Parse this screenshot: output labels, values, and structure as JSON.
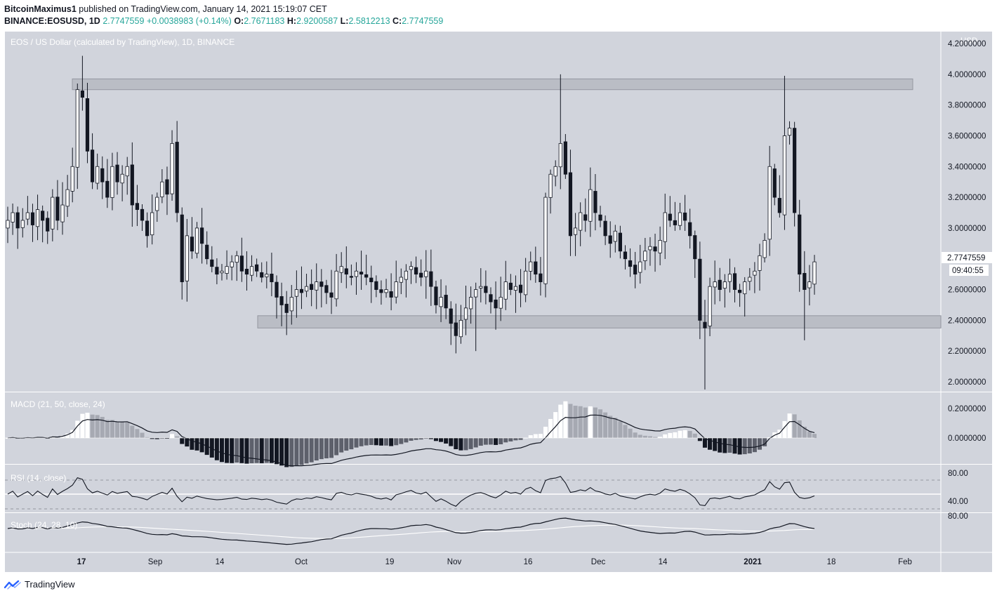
{
  "header": {
    "author": "BitcoinMaximus1",
    "published_text": "published on TradingView.com, January 14, 2021 15:19:07 CET",
    "symbol_line": "BINANCE:EOSUSD, 1D",
    "price": "2.7747559",
    "change": "+0.0038983 (+0.14%)",
    "o_label": "O:",
    "o": "2.7671183",
    "h_label": "H:",
    "h": "2.9200587",
    "l_label": "L:",
    "l": "2.5812213",
    "c_label": "C:",
    "c": "2.7747559"
  },
  "price_pane": {
    "title": "EOS / US Dollar (calculated by TradingView), 1D, BINANCE",
    "currency": "USD",
    "last_price_label": "2.7747559",
    "countdown": "09:40:55",
    "y_ticks": [
      "4.2000000",
      "4.0000000",
      "3.8000000",
      "3.6000000",
      "3.4000000",
      "3.2000000",
      "3.0000000",
      "2.8000000",
      "2.6000000",
      "2.4000000",
      "2.2000000",
      "2.0000000"
    ]
  },
  "macd_pane": {
    "title": "MACD (21, 50, close, 24)",
    "y_ticks": [
      "0.2000000",
      "0.0000000"
    ]
  },
  "rsi_pane": {
    "title": "RSI (14, close)",
    "y_ticks": [
      "80.00",
      "40.00"
    ]
  },
  "stoch_pane": {
    "title": "Stoch (24, 28, 10)",
    "y_ticks": [
      "80.00"
    ]
  },
  "x_axis": {
    "labels": [
      {
        "text": "17",
        "bold": true
      },
      {
        "text": "Sep",
        "bold": false
      },
      {
        "text": "14",
        "bold": false
      },
      {
        "text": "Oct",
        "bold": false
      },
      {
        "text": "19",
        "bold": false
      },
      {
        "text": "Nov",
        "bold": false
      },
      {
        "text": "16",
        "bold": false
      },
      {
        "text": "Dec",
        "bold": false
      },
      {
        "text": "14",
        "bold": false
      },
      {
        "text": "2021",
        "bold": true
      },
      {
        "text": "18",
        "bold": false
      },
      {
        "text": "Feb",
        "bold": false
      }
    ]
  },
  "footer": {
    "brand": "TradingView"
  },
  "colors": {
    "chart_bg": "#d1d4dc",
    "candle_up": "#ffffff",
    "candle_down": "#131722",
    "zone": "#b2b5be",
    "accent_up": "#26a69a"
  },
  "chart_data": {
    "type": "candlestick",
    "symbol": "EOSUSD",
    "interval": "1D",
    "date_range": [
      "2020-08-06",
      "2021-01-14"
    ],
    "ylim": [
      1.9,
      4.27
    ],
    "resistance_zone": [
      3.9,
      3.97
    ],
    "support_zone": [
      2.35,
      2.43
    ],
    "close_series": [
      3.05,
      3.1,
      3.0,
      3.05,
      3.1,
      3.02,
      3.12,
      3.05,
      2.98,
      3.2,
      3.05,
      3.15,
      3.25,
      3.4,
      3.9,
      3.85,
      3.5,
      3.3,
      3.4,
      3.3,
      3.2,
      3.4,
      3.3,
      3.35,
      3.4,
      3.15,
      3.12,
      3.05,
      2.95,
      3.1,
      3.2,
      3.3,
      3.22,
      3.55,
      3.1,
      2.65,
      2.95,
      2.85,
      3.0,
      2.9,
      2.8,
      2.75,
      2.7,
      2.72,
      2.75,
      2.78,
      2.82,
      2.72,
      2.7,
      2.75,
      2.72,
      2.68,
      2.7,
      2.65,
      2.55,
      2.5,
      2.45,
      2.55,
      2.6,
      2.58,
      2.62,
      2.6,
      2.65,
      2.62,
      2.58,
      2.55,
      2.72,
      2.75,
      2.7,
      2.68,
      2.72,
      2.7,
      2.68,
      2.65,
      2.6,
      2.58,
      2.6,
      2.55,
      2.65,
      2.68,
      2.72,
      2.75,
      2.7,
      2.68,
      2.72,
      2.62,
      2.5,
      2.55,
      2.48,
      2.38,
      2.3,
      2.4,
      2.48,
      2.55,
      2.6,
      2.62,
      2.58,
      2.52,
      2.48,
      2.55,
      2.65,
      2.6,
      2.62,
      2.58,
      2.72,
      2.78,
      2.7,
      2.65,
      3.2,
      3.35,
      3.4,
      3.55,
      3.35,
      2.95,
      3.0,
      3.1,
      3.05,
      3.25,
      3.1,
      3.05,
      2.95,
      2.9,
      2.98,
      2.85,
      2.8,
      2.75,
      2.7,
      2.78,
      2.85,
      2.88,
      2.85,
      2.92,
      3.1,
      3.05,
      3.02,
      3.1,
      3.05,
      2.95,
      2.8,
      2.4,
      2.35,
      2.62,
      2.65,
      2.6,
      2.65,
      2.7,
      2.6,
      2.58,
      2.65,
      2.68,
      2.72,
      2.82,
      2.92,
      3.4,
      3.2,
      3.1,
      3.6,
      3.65,
      3.1,
      2.7,
      2.6,
      2.65,
      2.78
    ],
    "indicators": {
      "macd": {
        "params": [
          21,
          50,
          "close",
          24
        ],
        "last_macd": 0.02,
        "last_signal": 0.0
      },
      "rsi": {
        "length": 14,
        "band": [
          40,
          80
        ]
      },
      "stoch": {
        "params": [
          24,
          28,
          10
        ]
      }
    }
  }
}
